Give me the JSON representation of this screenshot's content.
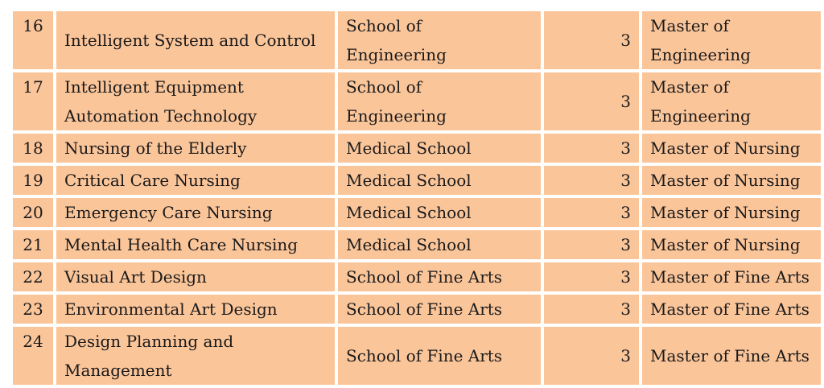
{
  "rows": [
    {
      "no": "16",
      "major": [
        "Intelligent System and Control"
      ],
      "school": [
        "School of",
        "Engineering"
      ],
      "years": "3",
      "degree": [
        "Master of",
        "Engineering"
      ]
    },
    {
      "no": "17",
      "major": [
        "Intelligent Equipment",
        "Automation Technology"
      ],
      "school": [
        "School of",
        "Engineering"
      ],
      "years": "3",
      "degree": [
        "Master of",
        "Engineering"
      ]
    },
    {
      "no": "18",
      "major": [
        "Nursing of the Elderly"
      ],
      "school": [
        "Medical School"
      ],
      "years": "3",
      "degree": [
        "Master of Nursing"
      ]
    },
    {
      "no": "19",
      "major": [
        "Critical Care Nursing"
      ],
      "school": [
        "Medical School"
      ],
      "years": "3",
      "degree": [
        "Master of Nursing"
      ]
    },
    {
      "no": "20",
      "major": [
        "Emergency Care Nursing"
      ],
      "school": [
        "Medical School"
      ],
      "years": "3",
      "degree": [
        "Master of Nursing"
      ]
    },
    {
      "no": "21",
      "major": [
        "Mental Health Care Nursing"
      ],
      "school": [
        "Medical School"
      ],
      "years": "3",
      "degree": [
        "Master of Nursing"
      ]
    },
    {
      "no": "22",
      "major": [
        "Visual Art Design"
      ],
      "school": [
        "School of Fine Arts"
      ],
      "years": "3",
      "degree": [
        "Master of Fine Arts"
      ]
    },
    {
      "no": "23",
      "major": [
        "Environmental Art Design"
      ],
      "school": [
        "School of Fine Arts"
      ],
      "years": "3",
      "degree": [
        "Master of Fine Arts"
      ]
    },
    {
      "no": "24",
      "major": [
        "Design Planning and",
        "Management"
      ],
      "school": [
        "School of Fine Arts"
      ],
      "years": "3",
      "degree": [
        "Master of Fine Arts"
      ]
    }
  ],
  "colors": {
    "cell_background": "#fbc59a",
    "grid_lines": "#ffffff"
  }
}
